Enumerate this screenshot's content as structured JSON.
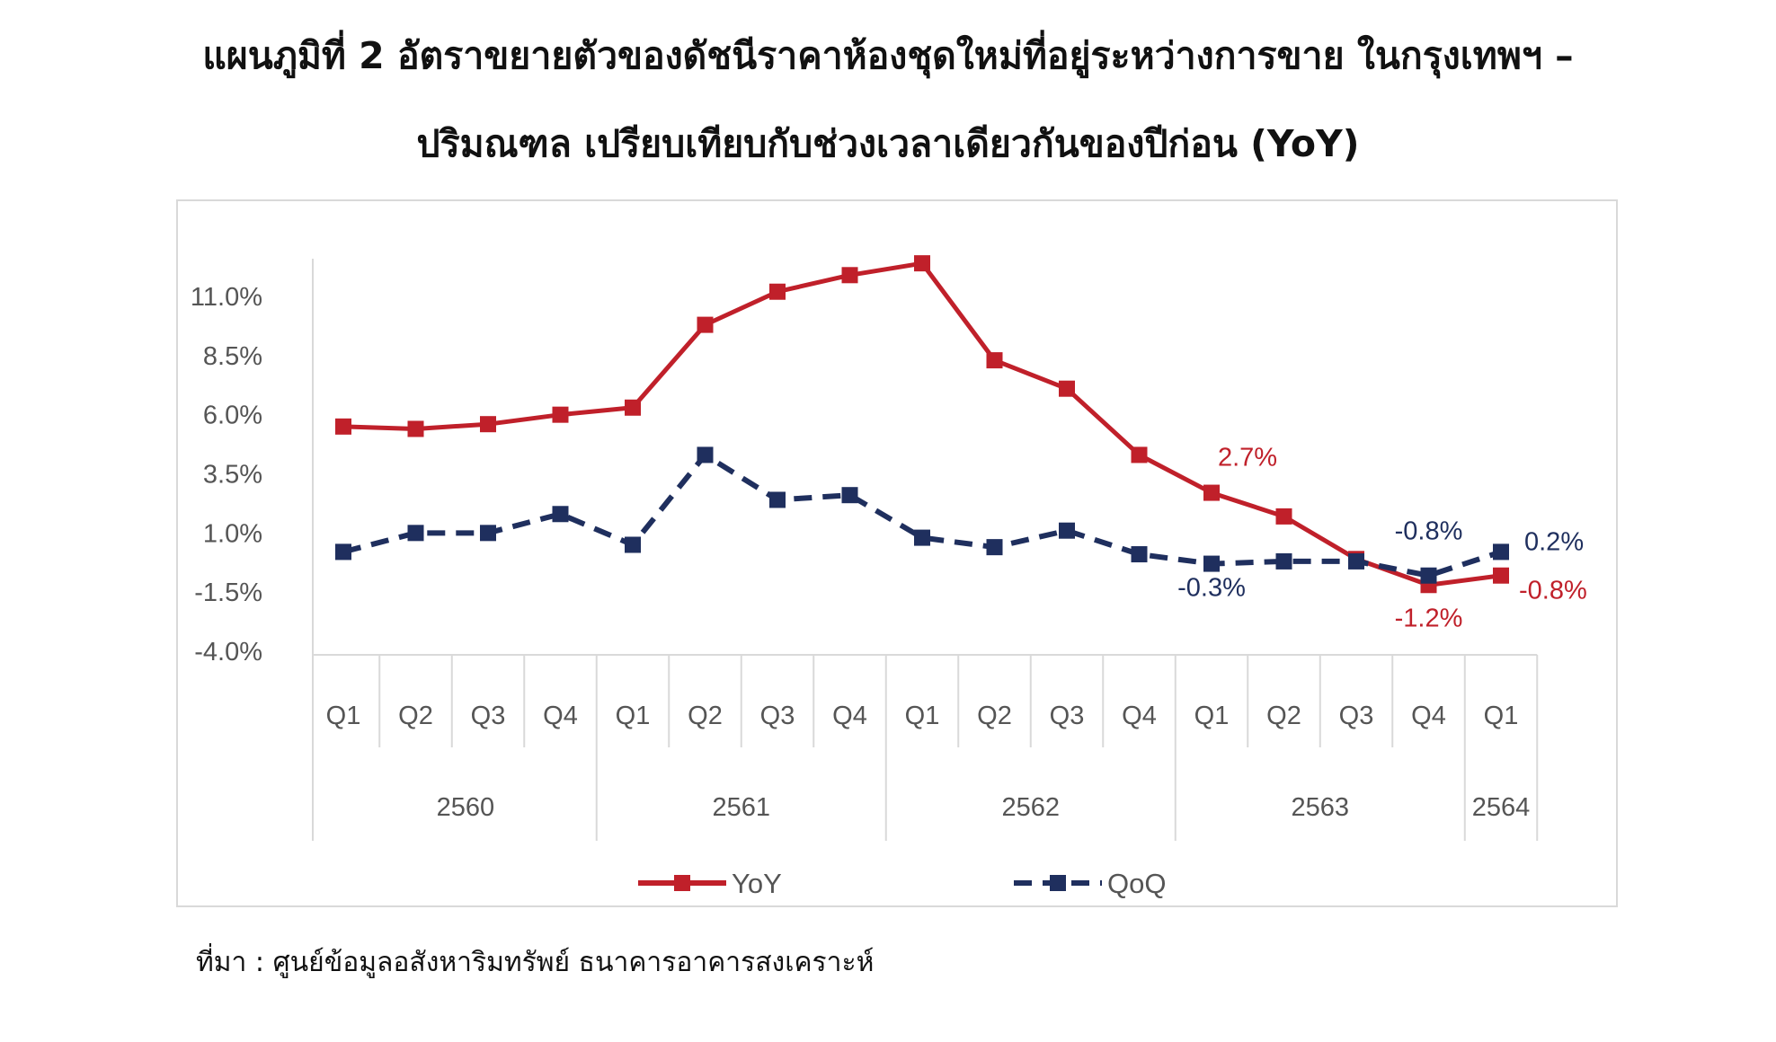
{
  "title": {
    "line1": "แผนภูมิที่ 2 อัตราขยายตัวของดัชนีราคาห้องชุดใหม่ที่อยู่ระหว่างการขาย ในกรุงเทพฯ –",
    "line2": "ปริมณฑล เปรียบเทียบกับช่วงเวลาเดียวกันของปีก่อน (YoY)"
  },
  "source": "ที่มา : ศูนย์ข้อมูลอสังหาริมทรัพย์ ธนาคารอาคารสงเคราะห์",
  "chart_data": {
    "type": "line",
    "title": "แผนภูมิที่ 2 อัตราขยายตัวของดัชนีราคาห้องชุดใหม่ที่อยู่ระหว่างการขาย ในกรุงเทพฯ – ปริมณฑล เปรียบเทียบกับช่วงเวลาเดียวกันของปีก่อน (YoY)",
    "quarters": [
      "Q1",
      "Q2",
      "Q3",
      "Q4",
      "Q1",
      "Q2",
      "Q3",
      "Q4",
      "Q1",
      "Q2",
      "Q3",
      "Q4",
      "Q1",
      "Q2",
      "Q3",
      "Q4",
      "Q1"
    ],
    "years": [
      {
        "label": "2560",
        "count": 4
      },
      {
        "label": "2561",
        "count": 4
      },
      {
        "label": "2562",
        "count": 4
      },
      {
        "label": "2563",
        "count": 4
      },
      {
        "label": "2564",
        "count": 1
      }
    ],
    "ylim": [
      -4.0,
      13.0
    ],
    "yticks": [
      "11.0%",
      "8.5%",
      "6.0%",
      "3.5%",
      "1.0%",
      "-1.5%",
      "-4.0%"
    ],
    "ytick_values": [
      11.0,
      8.5,
      6.0,
      3.5,
      1.0,
      -1.5,
      -4.0
    ],
    "series": [
      {
        "name": "YoY",
        "color": "#c0202a",
        "style": "solid",
        "values": [
          5.5,
          5.4,
          5.6,
          6.0,
          6.3,
          9.8,
          11.2,
          11.9,
          12.4,
          8.3,
          7.1,
          4.3,
          2.7,
          1.7,
          -0.1,
          -1.2,
          -0.8
        ],
        "labels": [
          {
            "index": 12,
            "text": "2.7%"
          },
          {
            "index": 15,
            "text": "-1.2%"
          },
          {
            "index": 16,
            "text": "-0.8%"
          }
        ]
      },
      {
        "name": "QoQ",
        "color": "#1f2f5e",
        "style": "dashed",
        "values": [
          0.2,
          1.0,
          1.0,
          1.8,
          0.5,
          4.3,
          2.4,
          2.6,
          0.8,
          0.4,
          1.1,
          0.1,
          -0.3,
          -0.2,
          -0.2,
          -0.8,
          0.2
        ],
        "labels": [
          {
            "index": 12,
            "text": "-0.3%"
          },
          {
            "index": 15,
            "text": "-0.8%"
          },
          {
            "index": 16,
            "text": "0.2%"
          }
        ]
      }
    ],
    "legend": {
      "position": "bottom",
      "entries": [
        "YoY",
        "QoQ"
      ]
    },
    "grid": false
  }
}
